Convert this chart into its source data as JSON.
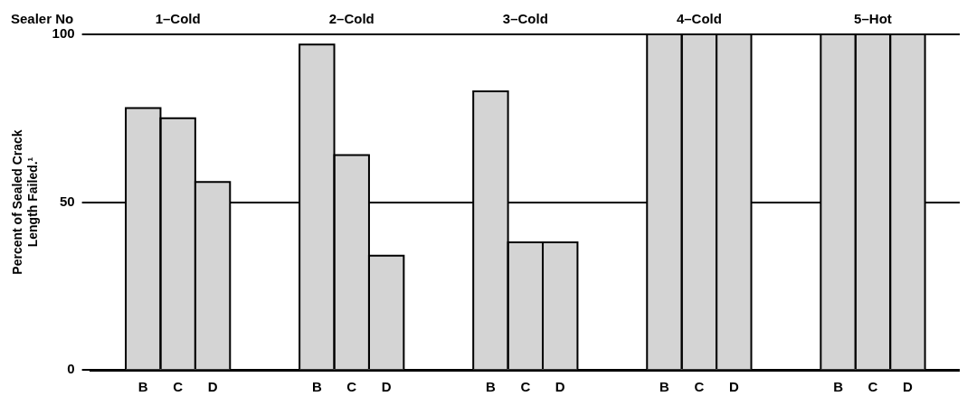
{
  "chart_data": {
    "type": "bar",
    "ylabel": "Percent of Sealed Crack Length Failed.¹",
    "categories": [
      null,
      "B",
      "C",
      "D",
      null,
      null,
      "B",
      "C",
      "D",
      null,
      null,
      "B",
      "C",
      "D",
      null,
      null,
      "B",
      "C",
      "D",
      null,
      null,
      "B",
      "C",
      "D",
      null
    ],
    "values": [
      null,
      78,
      75,
      56,
      null,
      null,
      97,
      64,
      34,
      null,
      null,
      83,
      38,
      38,
      null,
      null,
      100,
      100,
      100,
      null,
      null,
      100,
      100,
      100,
      null
    ],
    "color": "#d4d4d4",
    "ylim": [
      0,
      100
    ],
    "yticks": [
      0,
      50,
      100
    ],
    "grid": "y",
    "annotations": [
      "Sealer No",
      "1–Cold",
      "2–Cold",
      "3–Cold",
      "4–Cold",
      "5–Hot"
    ]
  }
}
